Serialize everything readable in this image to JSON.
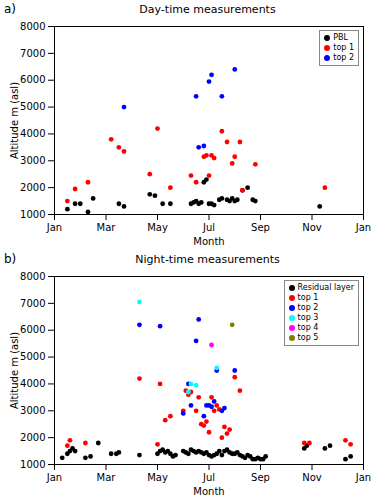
{
  "chart_data": [
    {
      "type": "scatter",
      "title": "Day-time measurements",
      "annotations": [
        "a)"
      ],
      "x_label": "Month",
      "y_label": "Altitude m (asl)",
      "xlim": [
        1,
        13
      ],
      "xticks": [
        {
          "value": 1,
          "label": "Jan"
        },
        {
          "value": 3,
          "label": "Mar"
        },
        {
          "value": 5,
          "label": "May"
        },
        {
          "value": 7,
          "label": "Jul"
        },
        {
          "value": 9,
          "label": "Sep"
        },
        {
          "value": 11,
          "label": "Nov"
        },
        {
          "value": 13,
          "label": "Jan"
        }
      ],
      "ylim": [
        1000,
        8000
      ],
      "yticks": [
        1000,
        2000,
        3000,
        4000,
        5000,
        6000,
        7000,
        8000
      ],
      "grid": false,
      "legend": "upper right",
      "series": [
        {
          "name": "PBL",
          "color": "black",
          "marker": "o",
          "x": [
            1.5,
            1.8,
            2.0,
            2.3,
            2.5,
            3.5,
            3.7,
            4.7,
            4.9,
            5.2,
            5.5,
            6.3,
            6.4,
            6.5,
            6.6,
            6.7,
            6.8,
            6.9,
            7.0,
            7.1,
            7.2,
            7.4,
            7.5,
            7.7,
            7.8,
            7.9,
            8.0,
            8.1,
            8.3,
            8.5,
            8.7,
            8.8,
            11.3
          ],
          "values": [
            1200,
            1400,
            1400,
            1100,
            1600,
            1400,
            1300,
            1750,
            1700,
            1400,
            1400,
            1400,
            1450,
            1500,
            1400,
            1450,
            2200,
            2300,
            1400,
            1400,
            1350,
            1550,
            1600,
            1550,
            1500,
            1600,
            1500,
            1550,
            1900,
            2000,
            1550,
            1500,
            1300
          ]
        },
        {
          "name": "top 1",
          "color": "red",
          "marker": "o",
          "x": [
            1.5,
            1.8,
            2.3,
            3.2,
            3.5,
            3.7,
            4.7,
            5.0,
            5.5,
            6.3,
            6.5,
            6.8,
            6.9,
            7.0,
            7.1,
            7.2,
            7.5,
            7.7,
            7.9,
            8.0,
            8.2,
            8.3,
            8.8,
            11.5
          ],
          "values": [
            1500,
            1950,
            2200,
            3800,
            3500,
            3350,
            2500,
            4200,
            2000,
            2450,
            2200,
            3150,
            3200,
            2450,
            3200,
            3100,
            4100,
            3700,
            2900,
            3150,
            3700,
            1900,
            2870,
            2000
          ]
        },
        {
          "name": "top 2",
          "color": "blue",
          "marker": "o",
          "x": [
            3.7,
            6.5,
            6.6,
            6.8,
            7.0,
            7.1,
            7.5,
            8.0
          ],
          "values": [
            5000,
            5400,
            3500,
            3550,
            5950,
            6200,
            5400,
            6400
          ]
        }
      ]
    },
    {
      "type": "scatter",
      "title": "Night-time measurements",
      "annotations": [
        "b)"
      ],
      "x_label": "Month",
      "y_label": "Altitude m (asl)",
      "xlim": [
        1,
        13
      ],
      "xticks": [
        {
          "value": 1,
          "label": "Jan"
        },
        {
          "value": 3,
          "label": "Mar"
        },
        {
          "value": 5,
          "label": "May"
        },
        {
          "value": 7,
          "label": "Jul"
        },
        {
          "value": 9,
          "label": "Sep"
        },
        {
          "value": 11,
          "label": "Nov"
        },
        {
          "value": 13,
          "label": "Jan"
        }
      ],
      "ylim": [
        1000,
        8000
      ],
      "yticks": [
        1000,
        2000,
        3000,
        4000,
        5000,
        6000,
        7000,
        8000
      ],
      "grid": false,
      "legend": "upper right",
      "series": [
        {
          "name": "Residual layer",
          "color": "black",
          "marker": "o",
          "x": [
            1.3,
            1.5,
            1.6,
            1.7,
            1.8,
            2.2,
            2.4,
            2.7,
            3.2,
            3.4,
            3.5,
            4.3,
            5.0,
            5.1,
            5.2,
            5.3,
            5.4,
            5.5,
            5.6,
            5.7,
            6.0,
            6.1,
            6.2,
            6.3,
            6.4,
            6.5,
            6.6,
            6.7,
            6.8,
            6.9,
            7.0,
            7.1,
            7.2,
            7.3,
            7.4,
            7.5,
            7.6,
            7.7,
            7.8,
            7.9,
            8.0,
            8.1,
            8.2,
            8.3,
            8.4,
            8.5,
            8.6,
            8.7,
            8.8,
            8.9,
            9.0,
            9.1,
            9.2,
            10.7,
            10.8,
            11.5,
            11.7,
            12.3,
            12.5
          ],
          "values": [
            1250,
            1400,
            1500,
            1600,
            1500,
            1250,
            1300,
            1800,
            1400,
            1400,
            1450,
            1350,
            1400,
            1500,
            1550,
            1450,
            1500,
            1400,
            1300,
            1350,
            1500,
            1450,
            1400,
            1550,
            1500,
            1450,
            1500,
            1450,
            1400,
            1450,
            1350,
            1300,
            1350,
            1400,
            1500,
            1350,
            1500,
            1550,
            1450,
            1400,
            1400,
            1450,
            1350,
            1300,
            1250,
            1350,
            1300,
            1200,
            1200,
            1250,
            1200,
            1200,
            1300,
            1600,
            1700,
            1600,
            1700,
            1200,
            1300
          ]
        },
        {
          "name": "top 1",
          "color": "red",
          "marker": "o",
          "x": [
            1.5,
            1.6,
            2.2,
            4.3,
            5.0,
            5.1,
            5.3,
            5.5,
            6.0,
            6.1,
            6.2,
            6.3,
            6.5,
            6.6,
            6.7,
            6.8,
            6.9,
            7.0,
            7.1,
            7.2,
            7.3,
            7.4,
            7.5,
            7.6,
            7.7,
            7.8,
            8.0,
            8.2,
            10.7,
            10.9,
            12.3,
            12.5
          ],
          "values": [
            1700,
            1900,
            1800,
            4200,
            1750,
            4000,
            2650,
            2800,
            3000,
            3750,
            3600,
            3700,
            3000,
            3500,
            2500,
            2450,
            2600,
            2200,
            3500,
            3000,
            3200,
            3050,
            2000,
            2400,
            2150,
            2300,
            4250,
            3750,
            1800,
            1800,
            1900,
            1750
          ]
        },
        {
          "name": "top 2",
          "color": "blue",
          "marker": "o",
          "x": [
            4.3,
            5.1,
            6.0,
            6.2,
            6.3,
            6.5,
            6.6,
            6.8,
            6.9,
            7.0,
            7.1,
            7.2,
            7.3,
            7.5,
            7.6,
            8.0
          ],
          "values": [
            6200,
            6150,
            2900,
            4000,
            3200,
            5600,
            6400,
            2800,
            3200,
            3200,
            3150,
            3350,
            4500,
            3000,
            3100,
            4500
          ]
        },
        {
          "name": "top 3",
          "color": "cyan",
          "marker": "o",
          "x": [
            4.3,
            6.2,
            6.3,
            6.5,
            7.3
          ],
          "values": [
            7050,
            3700,
            4000,
            3950,
            4600
          ]
        },
        {
          "name": "top 4",
          "color": "magenta",
          "marker": "o",
          "x": [
            7.1
          ],
          "values": [
            5450
          ]
        },
        {
          "name": "top 5",
          "color": "#808000",
          "marker": "o",
          "x": [
            7.9
          ],
          "values": [
            6200
          ]
        }
      ]
    }
  ]
}
